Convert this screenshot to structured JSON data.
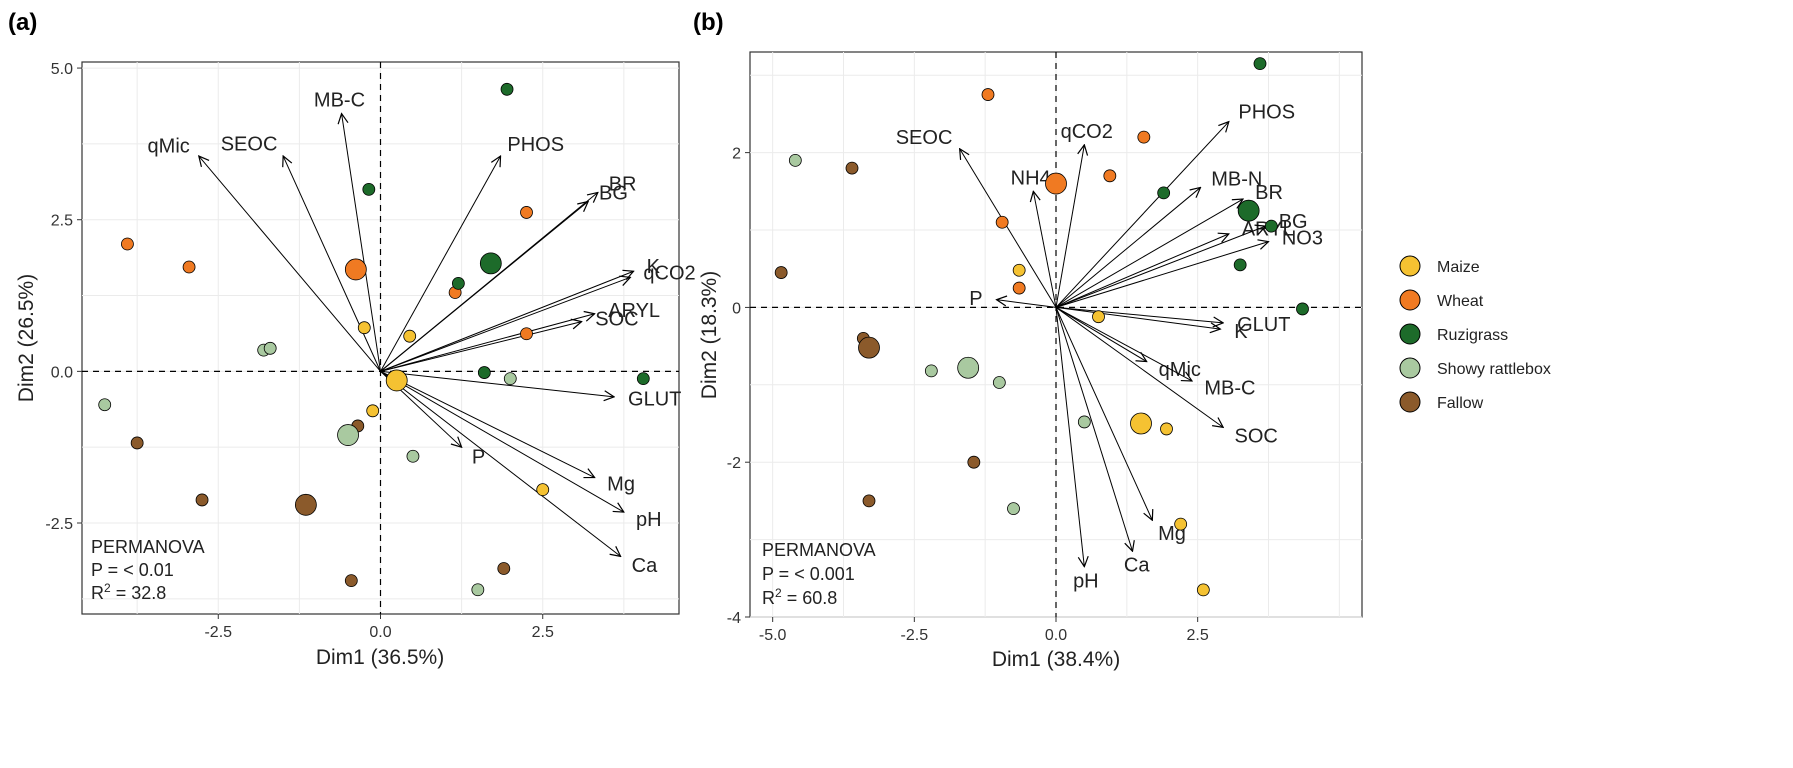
{
  "colors": {
    "Maize": "#f5c232",
    "Wheat": "#f07a22",
    "Ruzigrass": "#1d6b2a",
    "Showy rattlebox": "#a9c9a0",
    "Fallow": "#8b5a2b"
  },
  "legend": {
    "items": [
      {
        "label": "Maize",
        "color": "#f5c232"
      },
      {
        "label": "Wheat",
        "color": "#f07a22"
      },
      {
        "label": "Ruzigrass",
        "color": "#1d6b2a"
      },
      {
        "label": "Showy rattlebox",
        "color": "#a9c9a0"
      },
      {
        "label": "Fallow",
        "color": "#8b5a2b"
      }
    ]
  },
  "chart_data": [
    {
      "type": "scatter",
      "panel_label": "(a)",
      "xlabel": "Dim1 (36.5%)",
      "ylabel": "Dim2 (26.5%)",
      "xlim": [
        -4.6,
        4.6
      ],
      "ylim": [
        -4.0,
        5.1
      ],
      "xticks": [
        -2.5,
        0.0,
        2.5
      ],
      "xtick_labels": [
        "-2.5",
        "0.0",
        "2.5"
      ],
      "yticks": [
        -2.5,
        0.0,
        2.5,
        5.0
      ],
      "ytick_labels": [
        "-2.5",
        "0.0",
        "2.5",
        "5.0"
      ],
      "grid": true,
      "zero_lines": "dashed",
      "annotation": {
        "line1": "PERMANOVA",
        "line2": "P = < 0.01",
        "r2_prefix": "R",
        "r2_sup": "2",
        "r2_value": " = 32.8"
      },
      "points": [
        {
          "group": "Maize",
          "x": 0.25,
          "y": -0.15,
          "centroid": true
        },
        {
          "group": "Maize",
          "x": -0.25,
          "y": 0.72
        },
        {
          "group": "Maize",
          "x": 0.45,
          "y": 0.58
        },
        {
          "group": "Maize",
          "x": -0.12,
          "y": -0.65
        },
        {
          "group": "Maize",
          "x": 2.5,
          "y": -1.95
        },
        {
          "group": "Wheat",
          "x": -0.38,
          "y": 1.68,
          "centroid": true
        },
        {
          "group": "Wheat",
          "x": -3.9,
          "y": 2.1
        },
        {
          "group": "Wheat",
          "x": -2.95,
          "y": 1.72
        },
        {
          "group": "Wheat",
          "x": 2.25,
          "y": 2.62
        },
        {
          "group": "Wheat",
          "x": 1.15,
          "y": 1.3
        },
        {
          "group": "Wheat",
          "x": 2.25,
          "y": 0.62
        },
        {
          "group": "Ruzigrass",
          "x": 1.7,
          "y": 1.78,
          "centroid": true
        },
        {
          "group": "Ruzigrass",
          "x": 1.95,
          "y": 4.65
        },
        {
          "group": "Ruzigrass",
          "x": -0.18,
          "y": 3.0
        },
        {
          "group": "Ruzigrass",
          "x": 1.2,
          "y": 1.45
        },
        {
          "group": "Ruzigrass",
          "x": 1.6,
          "y": -0.02
        },
        {
          "group": "Ruzigrass",
          "x": 4.05,
          "y": -0.12
        },
        {
          "group": "Showy rattlebox",
          "x": -0.5,
          "y": -1.05,
          "centroid": true
        },
        {
          "group": "Showy rattlebox",
          "x": -4.25,
          "y": -0.55
        },
        {
          "group": "Showy rattlebox",
          "x": -1.8,
          "y": 0.35
        },
        {
          "group": "Showy rattlebox",
          "x": -1.7,
          "y": 0.38
        },
        {
          "group": "Showy rattlebox",
          "x": 2.0,
          "y": -0.12
        },
        {
          "group": "Showy rattlebox",
          "x": 0.5,
          "y": -1.4
        },
        {
          "group": "Showy rattlebox",
          "x": 1.5,
          "y": -3.6
        },
        {
          "group": "Fallow",
          "x": -1.15,
          "y": -2.2,
          "centroid": true
        },
        {
          "group": "Fallow",
          "x": -3.75,
          "y": -1.18
        },
        {
          "group": "Fallow",
          "x": -2.75,
          "y": -2.12
        },
        {
          "group": "Fallow",
          "x": -0.35,
          "y": -0.9
        },
        {
          "group": "Fallow",
          "x": -0.45,
          "y": -3.45
        },
        {
          "group": "Fallow",
          "x": 1.9,
          "y": -3.25
        }
      ],
      "loadings": [
        {
          "label": "MB-C",
          "x": -0.6,
          "y": 4.25
        },
        {
          "label": "PHOS",
          "x": 1.85,
          "y": 3.55
        },
        {
          "label": "BR",
          "x": 3.35,
          "y": 2.95
        },
        {
          "label": "BG",
          "x": 3.2,
          "y": 2.8
        },
        {
          "label": "K",
          "x": 3.9,
          "y": 1.65
        },
        {
          "label": "qCO2",
          "x": 3.85,
          "y": 1.55
        },
        {
          "label": "ARYL",
          "x": 3.3,
          "y": 0.95
        },
        {
          "label": "SOC",
          "x": 3.1,
          "y": 0.82
        },
        {
          "label": "GLUT",
          "x": 3.6,
          "y": -0.42
        },
        {
          "label": "P",
          "x": 1.25,
          "y": -1.25
        },
        {
          "label": "Mg",
          "x": 3.3,
          "y": -1.75
        },
        {
          "label": "pH",
          "x": 3.75,
          "y": -2.32
        },
        {
          "label": "Ca",
          "x": 3.7,
          "y": -3.05
        },
        {
          "label": "qMic",
          "x": -2.8,
          "y": 3.55
        },
        {
          "label": "SEOC",
          "x": -1.5,
          "y": 3.55
        }
      ]
    },
    {
      "type": "scatter",
      "panel_label": "(b)",
      "xlabel": "Dim1 (38.4%)",
      "ylabel": "Dim2 (18.3%)",
      "xlim": [
        -5.4,
        5.4
      ],
      "ylim": [
        -4.0,
        3.3
      ],
      "xticks": [
        -5.0,
        -2.5,
        0.0,
        2.5
      ],
      "xtick_labels": [
        "-5.0",
        "-2.5",
        "0.0",
        "2.5"
      ],
      "yticks": [
        -4,
        -2,
        0,
        2
      ],
      "ytick_labels": [
        "-4",
        "-2",
        "0",
        "2"
      ],
      "grid": true,
      "zero_lines": "dashed",
      "annotation": {
        "line1": "PERMANOVA",
        "line2": "P = < 0.001",
        "r2_prefix": "R",
        "r2_sup": "2",
        "r2_value": " = 60.8"
      },
      "points": [
        {
          "group": "Maize",
          "x": 1.5,
          "y": -1.5,
          "centroid": true
        },
        {
          "group": "Maize",
          "x": -0.65,
          "y": 0.48
        },
        {
          "group": "Maize",
          "x": 0.75,
          "y": -0.12
        },
        {
          "group": "Maize",
          "x": 1.95,
          "y": -1.57
        },
        {
          "group": "Maize",
          "x": 2.2,
          "y": -2.8
        },
        {
          "group": "Maize",
          "x": 2.6,
          "y": -3.65
        },
        {
          "group": "Wheat",
          "x": 0.0,
          "y": 1.6,
          "centroid": true
        },
        {
          "group": "Wheat",
          "x": -1.2,
          "y": 2.75
        },
        {
          "group": "Wheat",
          "x": 1.55,
          "y": 2.2
        },
        {
          "group": "Wheat",
          "x": 0.95,
          "y": 1.7
        },
        {
          "group": "Wheat",
          "x": -0.95,
          "y": 1.1
        },
        {
          "group": "Wheat",
          "x": -0.65,
          "y": 0.25
        },
        {
          "group": "Ruzigrass",
          "x": 3.4,
          "y": 1.25,
          "centroid": true
        },
        {
          "group": "Ruzigrass",
          "x": 3.6,
          "y": 3.15
        },
        {
          "group": "Ruzigrass",
          "x": 1.9,
          "y": 1.48
        },
        {
          "group": "Ruzigrass",
          "x": 3.8,
          "y": 1.05
        },
        {
          "group": "Ruzigrass",
          "x": 3.25,
          "y": 0.55
        },
        {
          "group": "Ruzigrass",
          "x": 4.35,
          "y": -0.02
        },
        {
          "group": "Showy rattlebox",
          "x": -1.55,
          "y": -0.78,
          "centroid": true
        },
        {
          "group": "Showy rattlebox",
          "x": -4.6,
          "y": 1.9
        },
        {
          "group": "Showy rattlebox",
          "x": -2.2,
          "y": -0.82
        },
        {
          "group": "Showy rattlebox",
          "x": -1.0,
          "y": -0.97
        },
        {
          "group": "Showy rattlebox",
          "x": 0.5,
          "y": -1.48
        },
        {
          "group": "Showy rattlebox",
          "x": -0.75,
          "y": -2.6
        },
        {
          "group": "Fallow",
          "x": -3.3,
          "y": -0.52,
          "centroid": true
        },
        {
          "group": "Fallow",
          "x": -3.6,
          "y": 1.8
        },
        {
          "group": "Fallow",
          "x": -4.85,
          "y": 0.45
        },
        {
          "group": "Fallow",
          "x": -3.4,
          "y": -0.4
        },
        {
          "group": "Fallow",
          "x": -1.45,
          "y": -2.0
        },
        {
          "group": "Fallow",
          "x": -3.3,
          "y": -2.5
        }
      ],
      "loadings": [
        {
          "label": "PHOS",
          "x": 3.05,
          "y": 2.4
        },
        {
          "label": "MB-N",
          "x": 2.55,
          "y": 1.55
        },
        {
          "label": "BR",
          "x": 3.3,
          "y": 1.4
        },
        {
          "label": "ARYL",
          "x": 3.05,
          "y": 0.95
        },
        {
          "label": "BG",
          "x": 3.7,
          "y": 1.05
        },
        {
          "label": "NO3",
          "x": 3.75,
          "y": 0.85
        },
        {
          "label": "GLUT",
          "x": 2.95,
          "y": -0.2
        },
        {
          "label": "K",
          "x": 2.9,
          "y": -0.28
        },
        {
          "label": "qMic",
          "x": 1.6,
          "y": -0.7
        },
        {
          "label": "MB-C",
          "x": 2.4,
          "y": -0.95
        },
        {
          "label": "SOC",
          "x": 2.95,
          "y": -1.55
        },
        {
          "label": "Mg",
          "x": 1.7,
          "y": -2.75
        },
        {
          "label": "Ca",
          "x": 1.35,
          "y": -3.15
        },
        {
          "label": "pH",
          "x": 0.5,
          "y": -3.35
        },
        {
          "label": "SEOC",
          "x": -1.7,
          "y": 2.05
        },
        {
          "label": "NH4",
          "x": -0.4,
          "y": 1.5
        },
        {
          "label": "qCO2",
          "x": 0.5,
          "y": 2.1
        },
        {
          "label": "P",
          "x": -1.05,
          "y": 0.1
        }
      ]
    }
  ]
}
